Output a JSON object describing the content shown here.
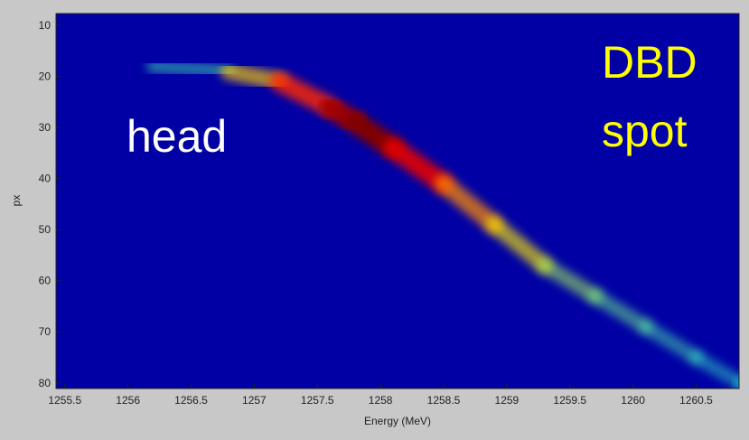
{
  "chart_data": {
    "type": "heatmap",
    "x_label": "Energy (MeV)",
    "y_label": "px",
    "annotations": [
      {
        "text": "head",
        "color": "#ffffff"
      },
      {
        "text": "DBD",
        "color": "#ffff00"
      },
      {
        "text": "spot",
        "color": "#ffff00"
      }
    ],
    "background": "#0000a4",
    "x": [
      1256.2,
      1256.8,
      1257.2,
      1257.6,
      1257.8,
      1258.1,
      1258.5,
      1258.9,
      1259.3,
      1259.7,
      1260.1,
      1260.5,
      1260.85
    ],
    "y": [
      18,
      19,
      21,
      26,
      29,
      34,
      41,
      49,
      57,
      63,
      69,
      75,
      80
    ],
    "values": [
      0.15,
      0.5,
      0.75,
      0.95,
      1,
      0.85,
      0.6,
      0.45,
      0.3,
      0.22,
      0.16,
      0.12,
      0.08
    ],
    "xlim": [
      1255.43,
      1260.84
    ],
    "ylim": [
      7.7,
      81.1
    ],
    "y_reversed": true,
    "xticks": [
      1255.5,
      1256,
      1256.5,
      1257,
      1257.5,
      1258,
      1258.5,
      1259,
      1259.5,
      1260,
      1260.5
    ],
    "yticks": [
      10,
      20,
      30,
      40,
      50,
      60,
      70,
      80
    ]
  }
}
